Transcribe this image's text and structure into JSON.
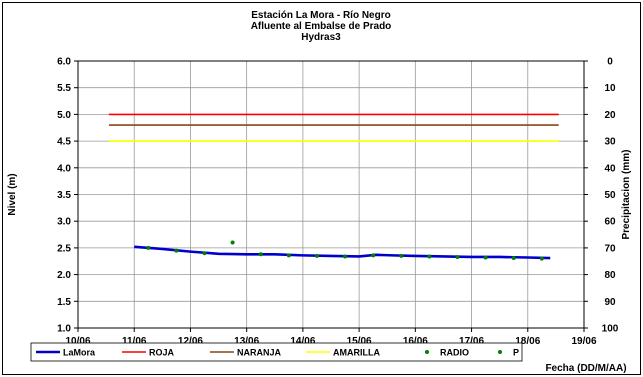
{
  "chart_data": {
    "type": "line",
    "title": [
      "Estación La Mora - Río Negro",
      "Afluente al Embalse de Prado",
      "Hydras3"
    ],
    "xlabel": "Fecha (DD/M/AA)",
    "ylabel": "Nivel (m)",
    "y2label": "Precipitacion (mm)",
    "x_ticks": [
      "10/06",
      "11/06",
      "12/06",
      "13/06",
      "14/06",
      "15/06",
      "16/06",
      "17/06",
      "18/06",
      "19/06"
    ],
    "xlim": [
      0,
      9
    ],
    "ylim": [
      1.0,
      6.0
    ],
    "y_ticks": [
      "1.0",
      "1.5",
      "2.0",
      "2.5",
      "3.0",
      "3.5",
      "4.0",
      "4.5",
      "5.0",
      "5.5",
      "6.0"
    ],
    "y2lim": [
      100,
      0
    ],
    "y2_ticks": [
      "0",
      "10",
      "20",
      "30",
      "40",
      "50",
      "60",
      "70",
      "80",
      "90",
      "100"
    ],
    "grid": true,
    "legend_position": "bottom",
    "series": [
      {
        "name": "LaMora",
        "kind": "line",
        "color": "#0000cc",
        "x": [
          1.0,
          1.5,
          2.0,
          2.5,
          3.0,
          3.5,
          4.0,
          4.5,
          5.0,
          5.3,
          5.6,
          6.0,
          6.5,
          7.0,
          7.5,
          8.0,
          8.4
        ],
        "y": [
          2.52,
          2.48,
          2.43,
          2.39,
          2.38,
          2.38,
          2.36,
          2.35,
          2.34,
          2.37,
          2.36,
          2.35,
          2.34,
          2.33,
          2.33,
          2.32,
          2.31
        ]
      },
      {
        "name": "ROJA",
        "kind": "hline",
        "color": "#ff0000",
        "x": [
          0.55,
          8.55
        ],
        "y": [
          5.0,
          5.0
        ]
      },
      {
        "name": "NARANJA",
        "kind": "hline",
        "color": "#8b4513",
        "x": [
          0.55,
          8.55
        ],
        "y": [
          4.8,
          4.8
        ]
      },
      {
        "name": "AMARILLA",
        "kind": "hline",
        "color": "#ffff00",
        "x": [
          0.55,
          8.55
        ],
        "y": [
          4.5,
          4.5
        ]
      },
      {
        "name": "RADIO",
        "kind": "scatter",
        "color": "#008000",
        "x": [
          1.25,
          1.75,
          2.25,
          2.75,
          3.25,
          3.75,
          4.25,
          4.75,
          5.25,
          5.75,
          6.25,
          6.75,
          7.25,
          7.75,
          8.25
        ],
        "y": [
          2.5,
          2.45,
          2.4,
          2.6,
          2.38,
          2.36,
          2.35,
          2.34,
          2.36,
          2.35,
          2.34,
          2.33,
          2.32,
          2.31,
          2.3
        ]
      },
      {
        "name": "P",
        "kind": "scatter",
        "color": "#008000",
        "x": [],
        "y": []
      }
    ]
  }
}
